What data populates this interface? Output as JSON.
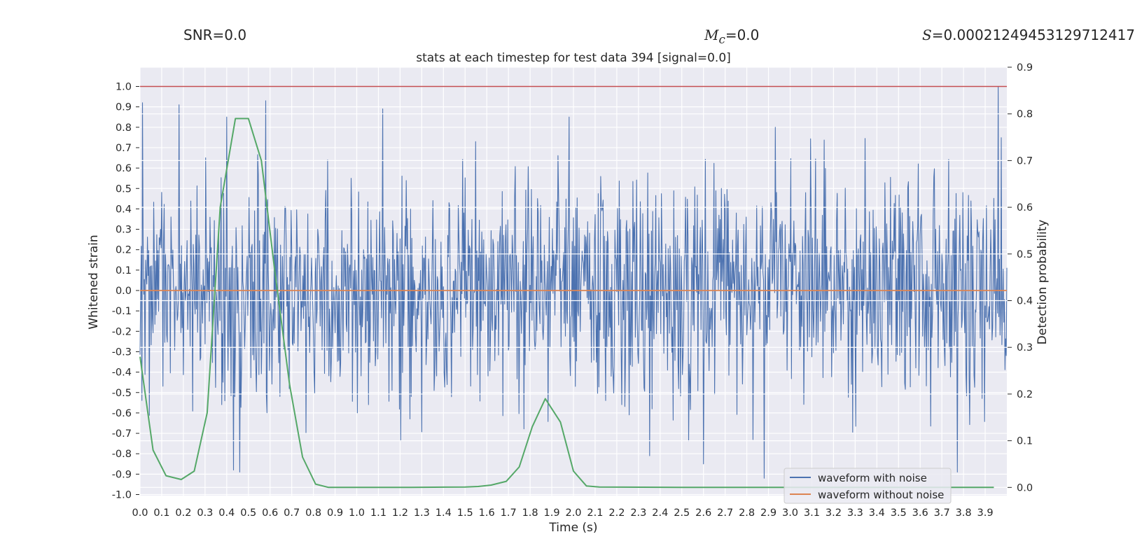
{
  "stats": {
    "snr_label": "SNR=0.0",
    "mc_symbol": "M",
    "mc_subscript": "c",
    "mc_value": "=0.0",
    "s_symbol": "S",
    "s_value": "=0.00021249453129712417"
  },
  "chart_data": {
    "type": "line",
    "title": "stats at each timestep for test data 394 [signal=0.0]",
    "xlabel": "Time (s)",
    "ylabel": "Whitened strain",
    "ylabel_right": "Detection probability",
    "xlim": [
      0.0,
      4.0
    ],
    "ylim": [
      -1.0,
      1.0
    ],
    "ylim_right": [
      -0.04,
      0.9
    ],
    "x_ticks": [
      "0.0",
      "0.1",
      "0.2",
      "0.3",
      "0.4",
      "0.5",
      "0.6",
      "0.7",
      "0.8",
      "0.9",
      "1.0",
      "1.1",
      "1.2",
      "1.3",
      "1.4",
      "1.5",
      "1.6",
      "1.7",
      "1.8",
      "1.9",
      "2.0",
      "2.1",
      "2.2",
      "2.3",
      "2.4",
      "2.5",
      "2.6",
      "2.7",
      "2.8",
      "2.9",
      "3.0",
      "3.1",
      "3.2",
      "3.3",
      "3.4",
      "3.5",
      "3.6",
      "3.7",
      "3.8",
      "3.9"
    ],
    "y_ticks": [
      "1.0",
      "0.9",
      "0.8",
      "0.7",
      "0.6",
      "0.5",
      "0.4",
      "0.3",
      "0.2",
      "0.1",
      "0.0",
      "-0.1",
      "-0.2",
      "-0.3",
      "-0.4",
      "-0.5",
      "-0.6",
      "-0.7",
      "-0.8",
      "-0.9",
      "-1.0"
    ],
    "y_ticks_right": [
      "0.9",
      "0.8",
      "0.7",
      "0.6",
      "0.5",
      "0.4",
      "0.3",
      "0.2",
      "0.1",
      "0.0"
    ],
    "grid": true,
    "legend": {
      "placement": "lower-right",
      "entries": [
        "waveform with noise",
        "waveform without noise"
      ]
    },
    "series": [
      {
        "name": "waveform with noise",
        "axis": "left",
        "color": "#4c72b0",
        "note": "dense whitened noise, roughly within [-0.9, 1.0]",
        "peaks": [
          {
            "x": 0.01,
            "y": 0.92
          },
          {
            "x": 0.18,
            "y": 0.91
          },
          {
            "x": 0.4,
            "y": 0.85
          },
          {
            "x": 0.46,
            "y": 0.84
          },
          {
            "x": 0.58,
            "y": 0.93
          },
          {
            "x": 1.12,
            "y": 0.89
          },
          {
            "x": 1.98,
            "y": 0.85
          },
          {
            "x": 2.93,
            "y": 0.8
          },
          {
            "x": 3.96,
            "y": 1.0
          },
          {
            "x": 0.43,
            "y": -0.88
          },
          {
            "x": 0.46,
            "y": -0.89
          },
          {
            "x": 2.88,
            "y": -0.92
          },
          {
            "x": 3.77,
            "y": -0.89
          },
          {
            "x": 2.6,
            "y": -0.85
          },
          {
            "x": 2.35,
            "y": -0.81
          }
        ]
      },
      {
        "name": "waveform without noise",
        "axis": "left",
        "color": "#dd8452",
        "x": [
          0.0,
          4.0
        ],
        "y": [
          0.0,
          0.0
        ]
      },
      {
        "name": "detection probability",
        "axis": "right",
        "color": "#55a868",
        "x": [
          0.0,
          0.06,
          0.12,
          0.19,
          0.25,
          0.31,
          0.37,
          0.44,
          0.5,
          0.56,
          0.62,
          0.69,
          0.75,
          0.81,
          0.87,
          0.94,
          1.0,
          1.25,
          1.5,
          1.56,
          1.62,
          1.69,
          1.75,
          1.81,
          1.87,
          1.94,
          2.0,
          2.06,
          2.12,
          2.5,
          3.0,
          3.5,
          3.94
        ],
        "y": [
          0.28,
          0.08,
          0.025,
          0.017,
          0.035,
          0.16,
          0.6,
          0.79,
          0.79,
          0.7,
          0.47,
          0.22,
          0.065,
          0.007,
          0.0,
          0.0,
          0.0,
          0.0,
          0.001,
          0.002,
          0.005,
          0.013,
          0.044,
          0.13,
          0.19,
          0.14,
          0.035,
          0.003,
          0.001,
          0.0,
          0.0,
          0.0,
          0.0
        ]
      }
    ],
    "hlines": [
      {
        "axis": "left",
        "y": 1.0,
        "color": "#c44e52"
      }
    ]
  }
}
